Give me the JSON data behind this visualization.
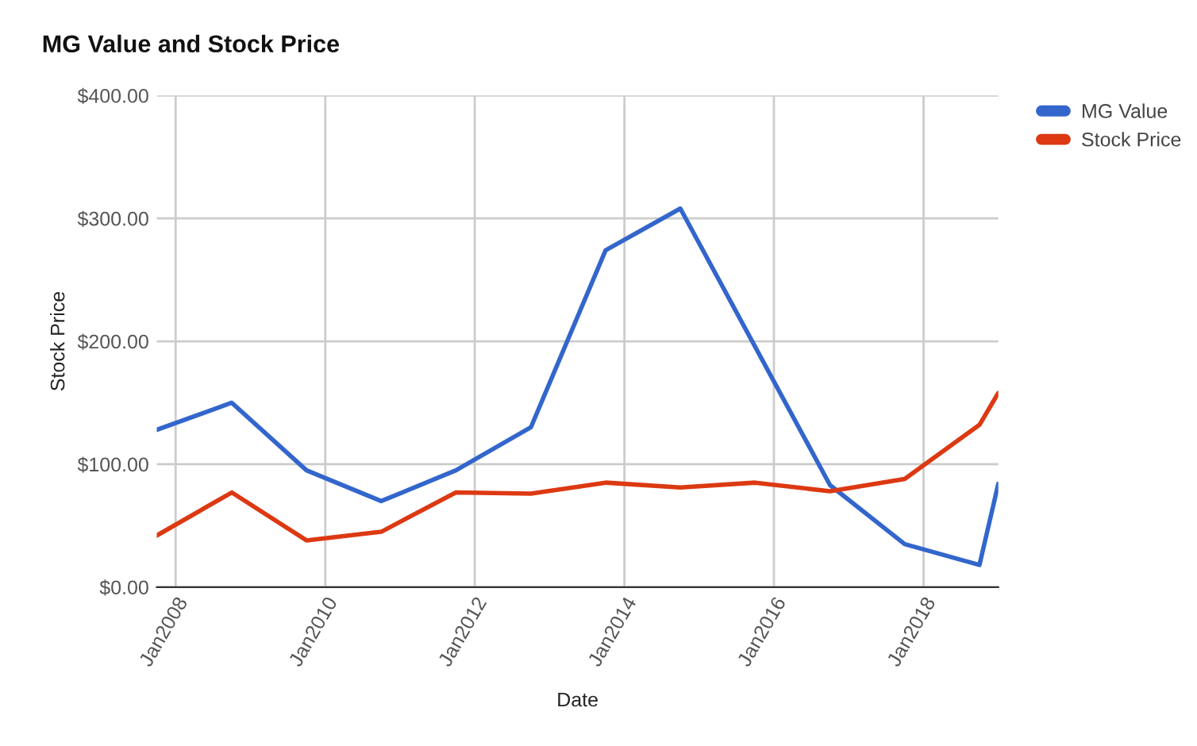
{
  "chart_data": {
    "type": "line",
    "title": "MG Value and Stock Price",
    "xlabel": "Date",
    "ylabel": "Stock Price",
    "series": [
      {
        "name": "MG Value",
        "color": "#3366cc",
        "x": [
          "2007-10",
          "2008-10",
          "2009-10",
          "2010-10",
          "2011-10",
          "2012-10",
          "2013-10",
          "2014-10",
          "2016-10",
          "2017-10",
          "2018-10",
          "2019-01"
        ],
        "values": [
          128,
          150,
          95,
          70,
          95,
          130,
          274,
          308,
          83,
          35,
          18,
          84
        ]
      },
      {
        "name": "Stock Price",
        "color": "#dc3912",
        "x": [
          "2007-10",
          "2008-10",
          "2009-10",
          "2010-10",
          "2011-10",
          "2012-10",
          "2013-10",
          "2014-10",
          "2015-10",
          "2016-10",
          "2017-10",
          "2018-10",
          "2019-01"
        ],
        "values": [
          42,
          77,
          38,
          45,
          77,
          76,
          85,
          81,
          85,
          78,
          88,
          132,
          158
        ]
      }
    ],
    "xlim": [
      "2007-10",
      "2019-01"
    ],
    "xticks": [
      {
        "value": "2008-01",
        "label": "Jan2008"
      },
      {
        "value": "2010-01",
        "label": "Jan2010"
      },
      {
        "value": "2012-01",
        "label": "Jan2012"
      },
      {
        "value": "2014-01",
        "label": "Jan2014"
      },
      {
        "value": "2016-01",
        "label": "Jan2016"
      },
      {
        "value": "2018-01",
        "label": "Jan2018"
      }
    ],
    "ylim": [
      0,
      400
    ],
    "yticks": [
      {
        "value": 0,
        "label": "$0.00"
      },
      {
        "value": 100,
        "label": "$100.00"
      },
      {
        "value": 200,
        "label": "$200.00"
      },
      {
        "value": 300,
        "label": "$300.00"
      },
      {
        "value": 400,
        "label": "$400.00"
      }
    ],
    "grid": true,
    "legend": "top right",
    "marker": "none",
    "line_style": "solid"
  }
}
